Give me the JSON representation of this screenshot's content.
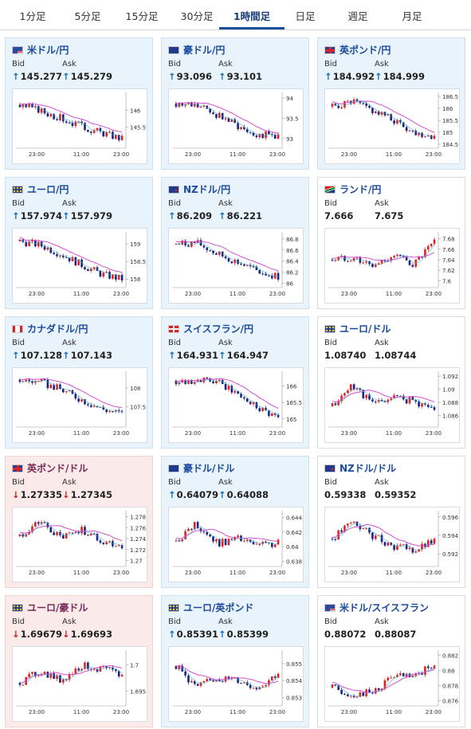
{
  "tabs": [
    "1分足",
    "5分足",
    "15分足",
    "30分足",
    "1時間足",
    "日足",
    "週足",
    "月足"
  ],
  "active_tab": "1時間足",
  "labels": {
    "bid": "Bid",
    "ask": "Ask"
  },
  "colors": {
    "up_arrow": "#1a6fb5",
    "down_arrow": "#c62828",
    "candle_up": "#e02020",
    "candle_down": "#1a237e",
    "ma_line": "#d050d0",
    "ma_line2": "#40b0c0"
  },
  "cards": [
    {
      "pair": "米ドル/円",
      "flag": "us",
      "trend": "up",
      "bid": "145.277",
      "ask": "145.279",
      "chart_data": {
        "type": "candlestick",
        "x_ticks": [
          "23:00",
          "11:00",
          "23:00"
        ],
        "y_ticks": [
          "146",
          "145.5"
        ],
        "ylim": [
          144.9,
          146.5
        ]
      }
    },
    {
      "pair": "豪ドル/円",
      "flag": "au",
      "trend": "up",
      "bid": "93.096",
      "ask": "93.101",
      "chart_data": {
        "type": "candlestick",
        "x_ticks": [
          "23:00",
          "11:00",
          "23:00"
        ],
        "y_ticks": [
          "94",
          "93.5",
          "93"
        ],
        "ylim": [
          92.8,
          94.1
        ]
      }
    },
    {
      "pair": "英ポンド/円",
      "flag": "uk",
      "trend": "up",
      "bid": "184.992",
      "ask": "184.999",
      "chart_data": {
        "type": "candlestick",
        "x_ticks": [
          "23:00",
          "11:00",
          "23:00"
        ],
        "y_ticks": [
          "186.5",
          "186",
          "185.5",
          "185",
          "184.5"
        ],
        "ylim": [
          184.4,
          186.6
        ]
      }
    },
    {
      "pair": "ユーロ/円",
      "flag": "eu",
      "trend": "up",
      "bid": "157.974",
      "ask": "157.979",
      "chart_data": {
        "type": "candlestick",
        "x_ticks": [
          "23:00",
          "11:00",
          "23:00"
        ],
        "y_ticks": [
          "159",
          "158.5",
          "158"
        ],
        "ylim": [
          157.8,
          159.3
        ]
      }
    },
    {
      "pair": "NZドル/円",
      "flag": "nz",
      "trend": "up",
      "bid": "86.209",
      "ask": "86.221",
      "chart_data": {
        "type": "candlestick",
        "x_ticks": [
          "23:00",
          "11:00",
          "23:00"
        ],
        "y_ticks": [
          "86.8",
          "86.6",
          "86.4",
          "86.2",
          "86"
        ],
        "ylim": [
          85.95,
          86.9
        ]
      }
    },
    {
      "pair": "ランド/円",
      "flag": "za",
      "trend": "none",
      "bid": "7.666",
      "ask": "7.675",
      "chart_data": {
        "type": "candlestick",
        "x_ticks": [
          "23:00",
          "11:00",
          "23:00"
        ],
        "y_ticks": [
          "7.68",
          "7.66",
          "7.64",
          "7.62",
          "7.6"
        ],
        "ylim": [
          7.59,
          7.69
        ]
      }
    },
    {
      "pair": "カナダドル/円",
      "flag": "ca",
      "trend": "up",
      "bid": "107.128",
      "ask": "107.143",
      "chart_data": {
        "type": "candlestick",
        "x_ticks": [
          "23:00",
          "11:00",
          "23:00"
        ],
        "y_ticks": [
          "108",
          "107.5"
        ],
        "ylim": [
          107.0,
          108.4
        ]
      }
    },
    {
      "pair": "スイスフラン/円",
      "flag": "ch",
      "trend": "up",
      "bid": "164.931",
      "ask": "164.947",
      "chart_data": {
        "type": "candlestick",
        "x_ticks": [
          "23:00",
          "11:00",
          "23:00"
        ],
        "y_ticks": [
          "166",
          "165.5",
          "165"
        ],
        "ylim": [
          164.8,
          166.4
        ]
      }
    },
    {
      "pair": "ユーロ/ドル",
      "flag": "eu",
      "trend": "none",
      "bid": "1.08740",
      "ask": "1.08744",
      "chart_data": {
        "type": "candlestick",
        "x_ticks": [
          "23:00",
          "11:00",
          "23:00"
        ],
        "y_ticks": [
          "1.092",
          "1.09",
          "1.088",
          "1.086"
        ],
        "ylim": [
          1.0845,
          1.0925
        ]
      }
    },
    {
      "pair": "英ポンド/ドル",
      "flag": "uk",
      "trend": "down",
      "bid": "1.27335",
      "ask": "1.27345",
      "chart_data": {
        "type": "candlestick",
        "x_ticks": [
          "23:00",
          "11:00",
          "23:00"
        ],
        "y_ticks": [
          "1.278",
          "1.276",
          "1.274",
          "1.272",
          "1.27"
        ],
        "ylim": [
          1.2692,
          1.2788
        ]
      }
    },
    {
      "pair": "豪ドル/ドル",
      "flag": "au",
      "trend": "up",
      "bid": "0.64079",
      "ask": "0.64088",
      "chart_data": {
        "type": "candlestick",
        "x_ticks": [
          "23:00",
          "11:00",
          "23:00"
        ],
        "y_ticks": [
          "0.644",
          "0.642",
          "0.64",
          "0.638"
        ],
        "ylim": [
          0.6375,
          0.6447
        ]
      }
    },
    {
      "pair": "NZドル/ドル",
      "flag": "nz",
      "trend": "none",
      "bid": "0.59338",
      "ask": "0.59352",
      "chart_data": {
        "type": "candlestick",
        "x_ticks": [
          "23:00",
          "11:00",
          "23:00"
        ],
        "y_ticks": [
          "0.596",
          "0.594",
          "0.592"
        ],
        "ylim": [
          0.5908,
          0.5965
        ]
      }
    },
    {
      "pair": "ユーロ/豪ドル",
      "flag": "eu",
      "trend": "down",
      "bid": "1.69679",
      "ask": "1.69693",
      "chart_data": {
        "type": "candlestick",
        "x_ticks": [
          "23:00",
          "11:00",
          "23:00"
        ],
        "y_ticks": [
          "1.7",
          "1.695"
        ],
        "ylim": [
          1.6925,
          1.7025
        ]
      }
    },
    {
      "pair": "ユーロ/英ポンド",
      "flag": "eu",
      "trend": "up",
      "bid": "0.85391",
      "ask": "0.85399",
      "chart_data": {
        "type": "candlestick",
        "x_ticks": [
          "23:00",
          "11:00",
          "23:00"
        ],
        "y_ticks": [
          "0.855",
          "0.854",
          "0.853"
        ],
        "ylim": [
          0.8526,
          0.8557
        ]
      }
    },
    {
      "pair": "米ドル/スイスフラン",
      "flag": "us",
      "trend": "none",
      "bid": "0.88072",
      "ask": "0.88087",
      "chart_data": {
        "type": "candlestick",
        "x_ticks": [
          "23:00",
          "11:00",
          "23:00"
        ],
        "y_ticks": [
          "0.882",
          "0.88",
          "0.878",
          "0.876"
        ],
        "ylim": [
          0.8755,
          0.8825
        ]
      }
    }
  ]
}
